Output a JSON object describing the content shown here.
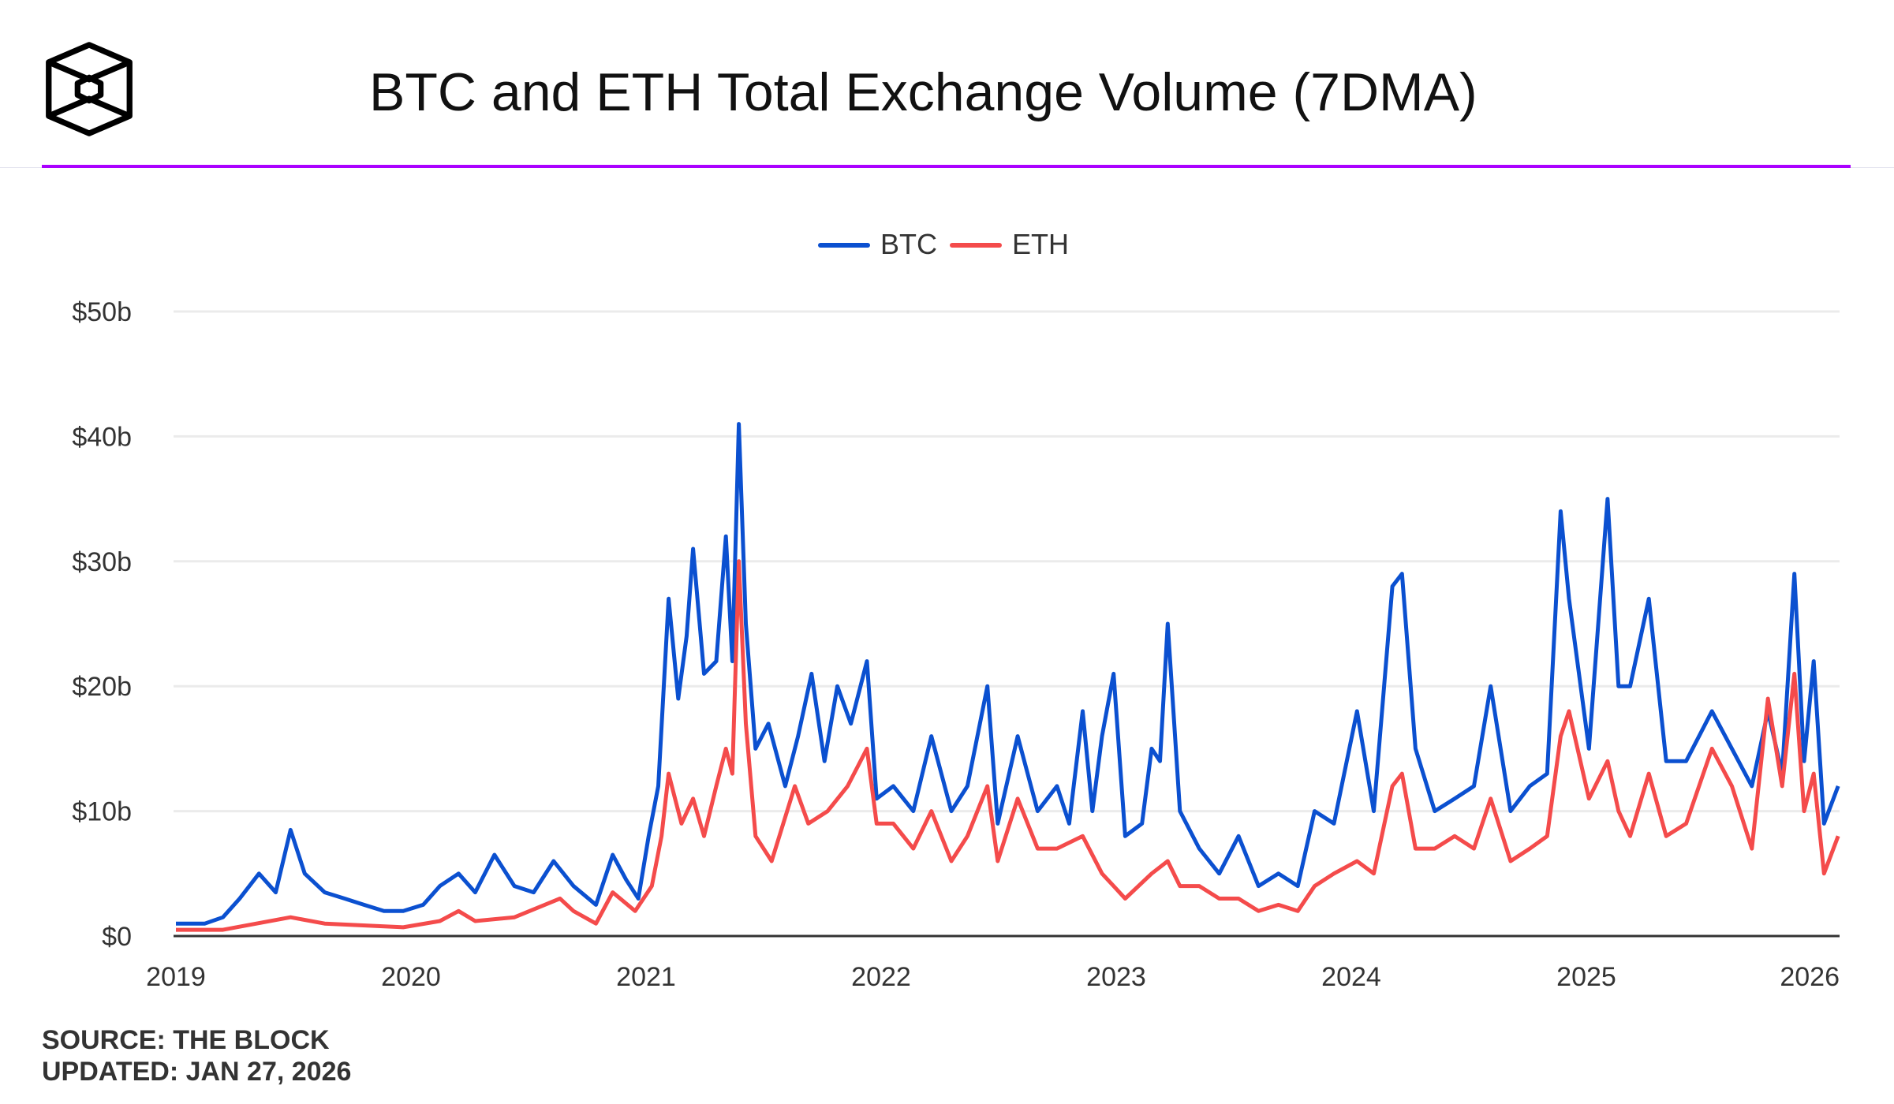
{
  "header": {
    "title": "BTC and ETH Total Exchange Volume (7DMA)",
    "logo": "The Block"
  },
  "footer": {
    "source": "SOURCE: THE BLOCK",
    "updated": "UPDATED: JAN 27, 2026"
  },
  "colors": {
    "btc": "#0b50d0",
    "eth": "#f44b4b",
    "accent": "#aa00ff"
  },
  "chart_data": {
    "type": "line",
    "title": "BTC and ETH Total Exchange Volume (7DMA)",
    "legend": "top-center",
    "grid": true,
    "ylim": [
      0,
      50
    ],
    "yticks": [
      {
        "v": 0,
        "label": "$0"
      },
      {
        "v": 10,
        "label": "$10b"
      },
      {
        "v": 20,
        "label": "$20b"
      },
      {
        "v": 30,
        "label": "$30b"
      },
      {
        "v": 40,
        "label": "$40b"
      },
      {
        "v": 50,
        "label": "$50b"
      }
    ],
    "xticks": [
      "2019",
      "2020",
      "2021",
      "2022",
      "2023",
      "2024",
      "2025",
      "2026"
    ],
    "xlim": [
      "2019-01-01",
      "2026-01-27"
    ],
    "series": [
      {
        "name": "BTC",
        "color": "#0b50d0",
        "points": [
          [
            "2019-01-01",
            1
          ],
          [
            "2019-02-15",
            1
          ],
          [
            "2019-03-15",
            1.5
          ],
          [
            "2019-04-10",
            3
          ],
          [
            "2019-05-10",
            5
          ],
          [
            "2019-06-05",
            3.5
          ],
          [
            "2019-06-28",
            8.5
          ],
          [
            "2019-07-20",
            5
          ],
          [
            "2019-08-20",
            3.5
          ],
          [
            "2019-09-20",
            3
          ],
          [
            "2019-10-20",
            2.5
          ],
          [
            "2019-11-20",
            2
          ],
          [
            "2019-12-20",
            2
          ],
          [
            "2020-01-20",
            2.5
          ],
          [
            "2020-02-15",
            4
          ],
          [
            "2020-03-15",
            5
          ],
          [
            "2020-04-10",
            3.5
          ],
          [
            "2020-05-10",
            6.5
          ],
          [
            "2020-06-10",
            4
          ],
          [
            "2020-07-10",
            3.5
          ],
          [
            "2020-08-10",
            6
          ],
          [
            "2020-09-10",
            4
          ],
          [
            "2020-10-15",
            2.5
          ],
          [
            "2020-11-10",
            6.5
          ],
          [
            "2020-12-01",
            4.5
          ],
          [
            "2020-12-20",
            3
          ],
          [
            "2021-01-05",
            8
          ],
          [
            "2021-01-20",
            12
          ],
          [
            "2021-02-05",
            27
          ],
          [
            "2021-02-20",
            19
          ],
          [
            "2021-03-05",
            24
          ],
          [
            "2021-03-15",
            31
          ],
          [
            "2021-04-01",
            21
          ],
          [
            "2021-04-20",
            22
          ],
          [
            "2021-05-05",
            32
          ],
          [
            "2021-05-15",
            22
          ],
          [
            "2021-05-25",
            41
          ],
          [
            "2021-06-05",
            25
          ],
          [
            "2021-06-20",
            15
          ],
          [
            "2021-07-10",
            17
          ],
          [
            "2021-08-05",
            12
          ],
          [
            "2021-08-25",
            16
          ],
          [
            "2021-09-15",
            21
          ],
          [
            "2021-10-05",
            14
          ],
          [
            "2021-10-25",
            20
          ],
          [
            "2021-11-15",
            17
          ],
          [
            "2021-12-10",
            22
          ],
          [
            "2021-12-25",
            11
          ],
          [
            "2022-01-20",
            12
          ],
          [
            "2022-02-20",
            10
          ],
          [
            "2022-03-20",
            16
          ],
          [
            "2022-04-20",
            10
          ],
          [
            "2022-05-15",
            12
          ],
          [
            "2022-06-15",
            20
          ],
          [
            "2022-07-01",
            9
          ],
          [
            "2022-08-01",
            16
          ],
          [
            "2022-09-01",
            10
          ],
          [
            "2022-10-01",
            12
          ],
          [
            "2022-10-20",
            9
          ],
          [
            "2022-11-10",
            18
          ],
          [
            "2022-11-25",
            10
          ],
          [
            "2022-12-10",
            16
          ],
          [
            "2022-12-28",
            21
          ],
          [
            "2023-01-15",
            8
          ],
          [
            "2023-02-10",
            9
          ],
          [
            "2023-02-25",
            15
          ],
          [
            "2023-03-10",
            14
          ],
          [
            "2023-03-22",
            25
          ],
          [
            "2023-04-10",
            10
          ],
          [
            "2023-05-10",
            7
          ],
          [
            "2023-06-10",
            5
          ],
          [
            "2023-07-10",
            8
          ],
          [
            "2023-08-10",
            4
          ],
          [
            "2023-09-10",
            5
          ],
          [
            "2023-10-10",
            4
          ],
          [
            "2023-11-05",
            10
          ],
          [
            "2023-12-05",
            9
          ],
          [
            "2024-01-10",
            18
          ],
          [
            "2024-02-05",
            10
          ],
          [
            "2024-03-05",
            28
          ],
          [
            "2024-03-20",
            29
          ],
          [
            "2024-04-10",
            15
          ],
          [
            "2024-05-10",
            10
          ],
          [
            "2024-06-10",
            11
          ],
          [
            "2024-07-10",
            12
          ],
          [
            "2024-08-05",
            20
          ],
          [
            "2024-09-05",
            10
          ],
          [
            "2024-10-05",
            12
          ],
          [
            "2024-11-01",
            13
          ],
          [
            "2024-11-22",
            34
          ],
          [
            "2024-12-05",
            27
          ],
          [
            "2025-01-05",
            15
          ],
          [
            "2025-02-03",
            35
          ],
          [
            "2025-02-20",
            20
          ],
          [
            "2025-03-10",
            20
          ],
          [
            "2025-04-08",
            27
          ],
          [
            "2025-05-05",
            14
          ],
          [
            "2025-06-05",
            14
          ],
          [
            "2025-07-15",
            18
          ],
          [
            "2025-08-15",
            15
          ],
          [
            "2025-09-15",
            12
          ],
          [
            "2025-10-10",
            18
          ],
          [
            "2025-11-01",
            13
          ],
          [
            "2025-11-20",
            29
          ],
          [
            "2025-12-05",
            14
          ],
          [
            "2025-12-20",
            22
          ],
          [
            "2026-01-05",
            9
          ],
          [
            "2026-01-27",
            12
          ]
        ]
      },
      {
        "name": "ETH",
        "color": "#f44b4b",
        "points": [
          [
            "2019-01-01",
            0.5
          ],
          [
            "2019-03-15",
            0.5
          ],
          [
            "2019-06-28",
            1.5
          ],
          [
            "2019-08-20",
            1
          ],
          [
            "2019-12-20",
            0.7
          ],
          [
            "2020-02-15",
            1.2
          ],
          [
            "2020-03-15",
            2
          ],
          [
            "2020-04-10",
            1.2
          ],
          [
            "2020-06-10",
            1.5
          ],
          [
            "2020-08-20",
            3
          ],
          [
            "2020-09-10",
            2
          ],
          [
            "2020-10-15",
            1
          ],
          [
            "2020-11-10",
            3.5
          ],
          [
            "2020-12-15",
            2
          ],
          [
            "2021-01-10",
            4
          ],
          [
            "2021-01-25",
            8
          ],
          [
            "2021-02-05",
            13
          ],
          [
            "2021-02-25",
            9
          ],
          [
            "2021-03-15",
            11
          ],
          [
            "2021-04-01",
            8
          ],
          [
            "2021-04-20",
            12
          ],
          [
            "2021-05-05",
            15
          ],
          [
            "2021-05-15",
            13
          ],
          [
            "2021-05-25",
            30
          ],
          [
            "2021-06-05",
            17
          ],
          [
            "2021-06-20",
            8
          ],
          [
            "2021-07-15",
            6
          ],
          [
            "2021-08-20",
            12
          ],
          [
            "2021-09-10",
            9
          ],
          [
            "2021-10-10",
            10
          ],
          [
            "2021-11-10",
            12
          ],
          [
            "2021-12-10",
            15
          ],
          [
            "2021-12-25",
            9
          ],
          [
            "2022-01-20",
            9
          ],
          [
            "2022-02-20",
            7
          ],
          [
            "2022-03-20",
            10
          ],
          [
            "2022-04-20",
            6
          ],
          [
            "2022-05-15",
            8
          ],
          [
            "2022-06-15",
            12
          ],
          [
            "2022-07-01",
            6
          ],
          [
            "2022-08-01",
            11
          ],
          [
            "2022-09-01",
            7
          ],
          [
            "2022-10-01",
            7
          ],
          [
            "2022-11-10",
            8
          ],
          [
            "2022-12-10",
            5
          ],
          [
            "2022-12-28",
            4
          ],
          [
            "2023-01-15",
            3
          ],
          [
            "2023-02-25",
            5
          ],
          [
            "2023-03-22",
            6
          ],
          [
            "2023-04-10",
            4
          ],
          [
            "2023-05-10",
            4
          ],
          [
            "2023-06-10",
            3
          ],
          [
            "2023-07-10",
            3
          ],
          [
            "2023-08-10",
            2
          ],
          [
            "2023-09-10",
            2.5
          ],
          [
            "2023-10-10",
            2
          ],
          [
            "2023-11-05",
            4
          ],
          [
            "2023-12-05",
            5
          ],
          [
            "2024-01-10",
            6
          ],
          [
            "2024-02-05",
            5
          ],
          [
            "2024-03-05",
            12
          ],
          [
            "2024-03-20",
            13
          ],
          [
            "2024-04-10",
            7
          ],
          [
            "2024-05-10",
            7
          ],
          [
            "2024-06-10",
            8
          ],
          [
            "2024-07-10",
            7
          ],
          [
            "2024-08-05",
            11
          ],
          [
            "2024-09-05",
            6
          ],
          [
            "2024-10-05",
            7
          ],
          [
            "2024-11-01",
            8
          ],
          [
            "2024-11-22",
            16
          ],
          [
            "2024-12-05",
            18
          ],
          [
            "2025-01-05",
            11
          ],
          [
            "2025-02-03",
            14
          ],
          [
            "2025-02-20",
            10
          ],
          [
            "2025-03-10",
            8
          ],
          [
            "2025-04-08",
            13
          ],
          [
            "2025-05-05",
            8
          ],
          [
            "2025-06-05",
            9
          ],
          [
            "2025-07-15",
            15
          ],
          [
            "2025-08-15",
            12
          ],
          [
            "2025-09-15",
            7
          ],
          [
            "2025-10-10",
            19
          ],
          [
            "2025-11-01",
            12
          ],
          [
            "2025-11-20",
            21
          ],
          [
            "2025-12-05",
            10
          ],
          [
            "2025-12-20",
            13
          ],
          [
            "2026-01-05",
            5
          ],
          [
            "2026-01-27",
            8
          ]
        ]
      }
    ]
  }
}
